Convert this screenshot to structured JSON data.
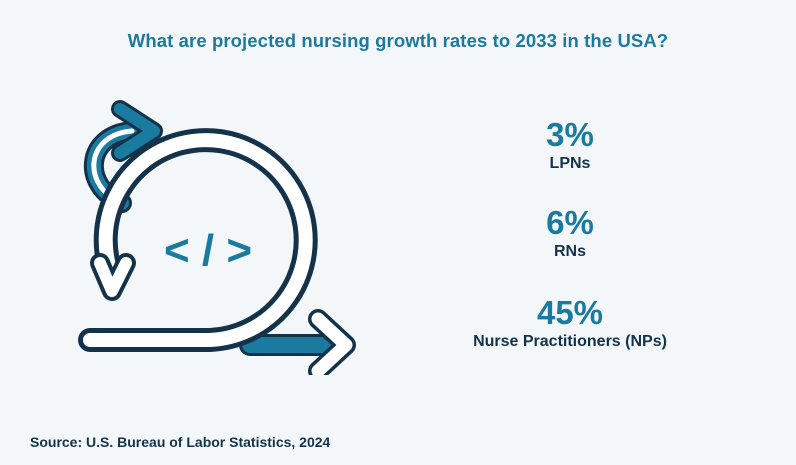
{
  "title": "What are projected nursing growth rates to 2033 in the USA?",
  "stats": [
    {
      "value": "3%",
      "label": "LPNs"
    },
    {
      "value": "6%",
      "label": "RNs"
    },
    {
      "value": "45%",
      "label": "Nurse Practitioners (NPs)"
    }
  ],
  "source": "Source:  U.S. Bureau of Labor Statistics, 2024",
  "illustration": {
    "icon": "agile-cycle-arrows-code-icon",
    "symbol": "< / >"
  },
  "colors": {
    "accent": "#1a7aa0",
    "dark": "#14334a",
    "background": "#f3f7f9"
  }
}
